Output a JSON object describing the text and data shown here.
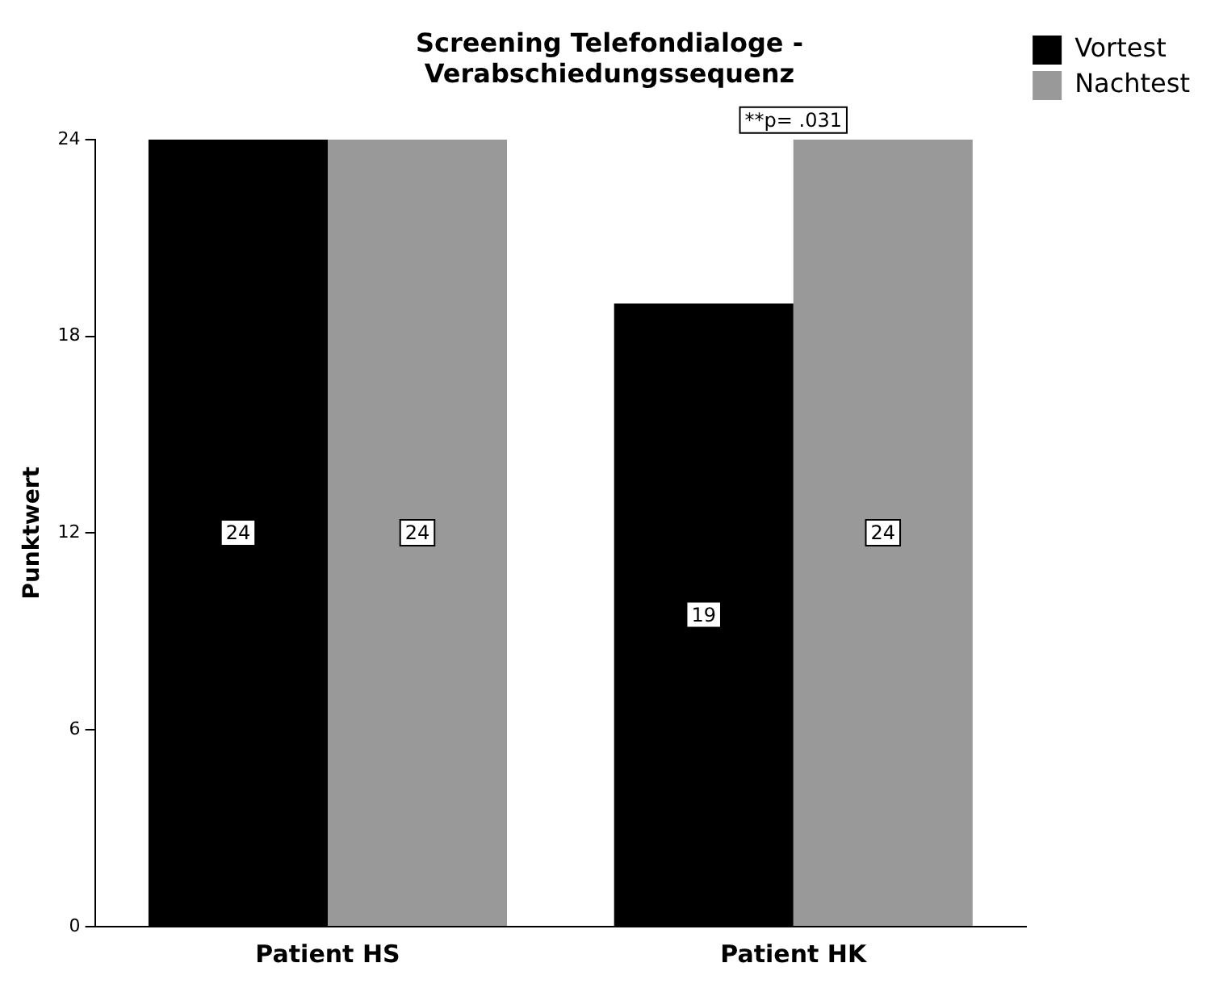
{
  "chart_data": {
    "type": "bar",
    "title": "Screening Telefondialoge - Verabschiedungssequenz",
    "ylabel": "Punktwert",
    "categories": [
      "Patient HS",
      "Patient HK"
    ],
    "series": [
      {
        "name": "Vortest",
        "color": "#000000",
        "values": [
          24,
          19
        ]
      },
      {
        "name": "Nachtest",
        "color": "#999999",
        "values": [
          24,
          24
        ]
      }
    ],
    "ylim": [
      0,
      24
    ],
    "yticks": [
      0,
      6,
      12,
      18,
      24
    ],
    "grid": false,
    "legend": "top right",
    "data_labels": true,
    "annotations": [
      {
        "text": "**p= .031",
        "x": "Patient HK",
        "y": 24
      }
    ]
  }
}
